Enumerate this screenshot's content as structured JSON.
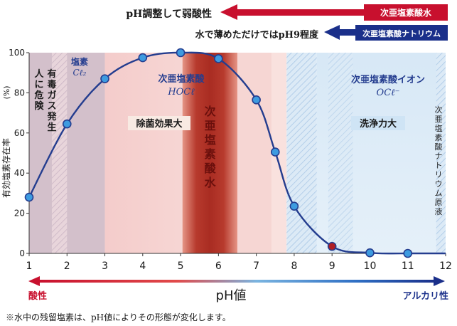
{
  "header": {
    "red_arrow_caption": "pH調整して弱酸性",
    "red_arrow_label": "次亜塩素酸水",
    "blue_arrow_caption": "水で薄めただけではpH9程度",
    "blue_arrow_label": "次亜塩素酸ナトリウム"
  },
  "zones": {
    "chlorine_gas_name": "塩素",
    "chlorine_gas_formula": "Cℓ₂",
    "toxic_gas_note": [
      "有毒ガス発生",
      "人に危険"
    ],
    "hypochlorous_acid_name": "次亜塩素酸",
    "hypochlorous_acid_formula": "HOCℓ",
    "hypochlorite_ion_name": "次亜塩素酸イオン",
    "hypochlorite_ion_formula": "OCℓ⁻",
    "product_band_label": [
      "次",
      "亜",
      "塩",
      "素",
      "酸",
      "水"
    ],
    "sodium_hypochlorite_stock": [
      "次",
      "亜",
      "塩",
      "素",
      "酸",
      "ナ",
      "ト",
      "リ",
      "ウ",
      "ム",
      "原",
      "液"
    ],
    "sterilization_badge": "除菌効果大",
    "cleaning_badge": "洗浄力大"
  },
  "axis_bar": {
    "left_label": "酸性",
    "center_label": "pH値",
    "right_label": "アルカリ性"
  },
  "footnote": "※水中の残留塩素は、pH値によりその形態が変化します。",
  "colors": {
    "curve": "#243d8f",
    "marker_fill": "#3d9be0",
    "marker_highlight": "#b01e24",
    "chlorine_zone": "#d3c0cb",
    "acid_zone": "#f6d6d4",
    "product_band": "#c0392b",
    "alkaline_zone": "#dcebf7",
    "red_arrow": "#c8102e",
    "blue_arrow": "#1a2f8a"
  },
  "chart_data": {
    "type": "line",
    "title": "",
    "xlabel": "",
    "ylabel": "有効塩素存在率",
    "y_unit": "(%)",
    "xlim": [
      1,
      12
    ],
    "ylim": [
      0,
      100
    ],
    "x_ticks": [
      1,
      2,
      3,
      4,
      5,
      6,
      7,
      8,
      9,
      10,
      11,
      12
    ],
    "y_ticks": [
      0,
      20,
      40,
      60,
      80,
      100
    ],
    "grid": false,
    "series": [
      {
        "values": [
          [
            1,
            28
          ],
          [
            2,
            64.5
          ],
          [
            3,
            87
          ],
          [
            4,
            97.5
          ],
          [
            5,
            100
          ],
          [
            6,
            97
          ],
          [
            7,
            76.5
          ],
          [
            7.5,
            50.5
          ],
          [
            8,
            23.5
          ],
          [
            9,
            3.5
          ],
          [
            10,
            0.3
          ],
          [
            11,
            0
          ]
        ],
        "highlight_x": 9
      }
    ]
  }
}
